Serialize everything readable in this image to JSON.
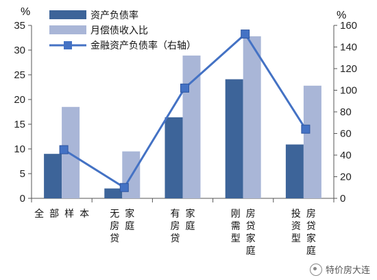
{
  "chart_data": {
    "type": "bar",
    "title": "",
    "categories": [
      [
        "全",
        "部",
        "样",
        "本"
      ],
      [
        "无房贷",
        "家庭"
      ],
      [
        "有房贷",
        "家庭"
      ],
      [
        "刚需型",
        "房贷家庭"
      ],
      [
        "投资型",
        "房贷家庭"
      ]
    ],
    "y_left": {
      "unit": "%",
      "ylim": [
        0,
        35
      ],
      "ticks": [
        0,
        5,
        10,
        15,
        20,
        25,
        30,
        35
      ]
    },
    "y_right": {
      "unit": "%",
      "ylim": [
        0,
        160
      ],
      "ticks": [
        0,
        20,
        40,
        60,
        80,
        100,
        120,
        140,
        160
      ]
    },
    "series": [
      {
        "name": "资产负债率",
        "type": "bar",
        "axis": "left",
        "color": "#3d6499",
        "values": [
          9.0,
          2.0,
          16.4,
          24.1,
          10.9
        ]
      },
      {
        "name": "月偿债收入比",
        "type": "bar",
        "axis": "left",
        "color": "#a9b6d7",
        "values": [
          18.5,
          9.5,
          28.9,
          32.8,
          22.8
        ]
      },
      {
        "name": "金融资产负债率（右轴）",
        "type": "line",
        "axis": "right",
        "color": "#4472c4",
        "values": [
          45,
          10,
          102,
          152,
          64
        ]
      }
    ],
    "legend": "top-left",
    "grid": false
  },
  "watermark": {
    "text": "特价房大连",
    "icon": "wechat-icon"
  }
}
